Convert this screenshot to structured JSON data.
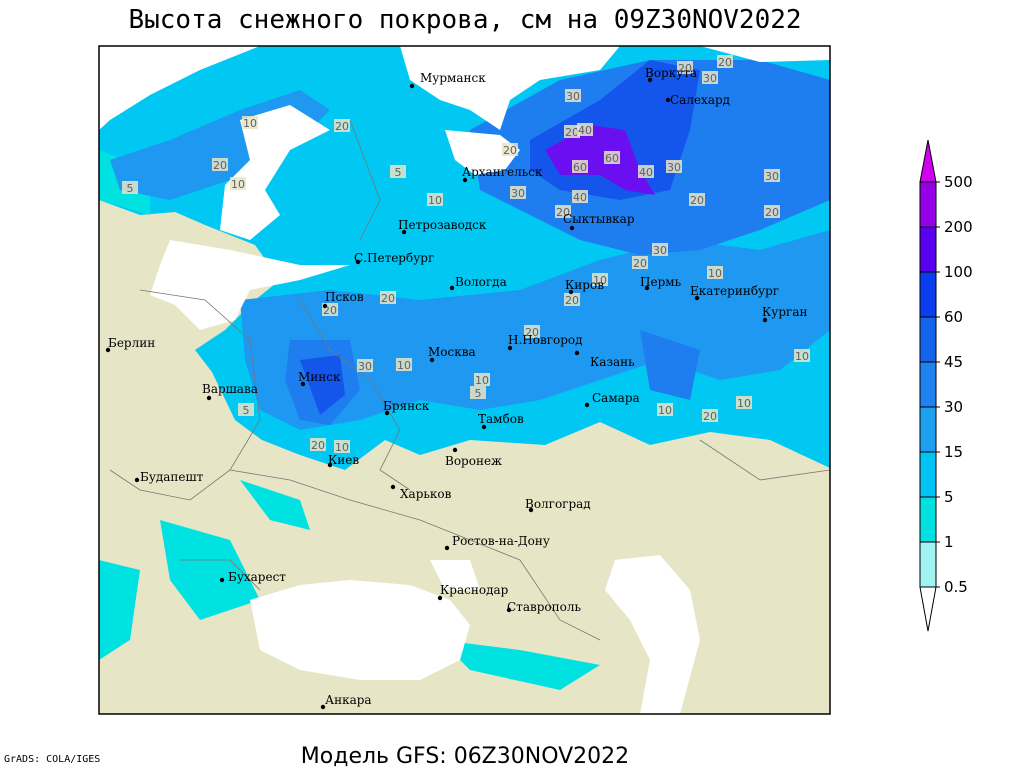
{
  "title": "Высота снежного покрова, см на 09Z30NOV2022",
  "footer": "Модель GFS: 06Z30NOV2022",
  "credit": "GrADS: COLA/IGES",
  "cities": [
    "Мурманск",
    "Воркута",
    "Салехард",
    "Архангельск",
    "Сыктывкар",
    "Петрозаводск",
    "С.Петербург",
    "Вологда",
    "Киров",
    "Пермь",
    "Екатеринбург",
    "Курган",
    "Псков",
    "Москва",
    "Н.Новгород",
    "Казань",
    "Берлин",
    "Варшава",
    "Минск",
    "Брянск",
    "Тамбов",
    "Самара",
    "Киев",
    "Воронеж",
    "Будапешт",
    "Харьков",
    "Волгоград",
    "Ростов-на-Дону",
    "Бухарест",
    "Краснодар",
    "Ставрополь",
    "Анкара"
  ],
  "contour_labels": [
    10,
    20,
    20,
    10,
    5,
    5,
    30,
    20,
    40,
    60,
    60,
    30,
    40,
    30,
    40,
    20,
    30,
    20,
    20,
    30,
    20,
    10,
    10,
    20,
    20,
    20,
    20,
    30,
    10,
    10,
    10,
    20,
    5,
    10,
    20,
    10,
    10,
    20,
    20,
    20,
    30,
    10,
    5
  ],
  "legend": {
    "levels": [
      0.5,
      1,
      5,
      15,
      30,
      45,
      60,
      100,
      200,
      500
    ],
    "colors": [
      "#ffffff",
      "#a0f4f4",
      "#00e2e2",
      "#00c4f4",
      "#1ea0f0",
      "#1e82f0",
      "#1464ea",
      "#0a3cf0",
      "#5a00f0",
      "#9600e8",
      "#d200f0"
    ]
  }
}
